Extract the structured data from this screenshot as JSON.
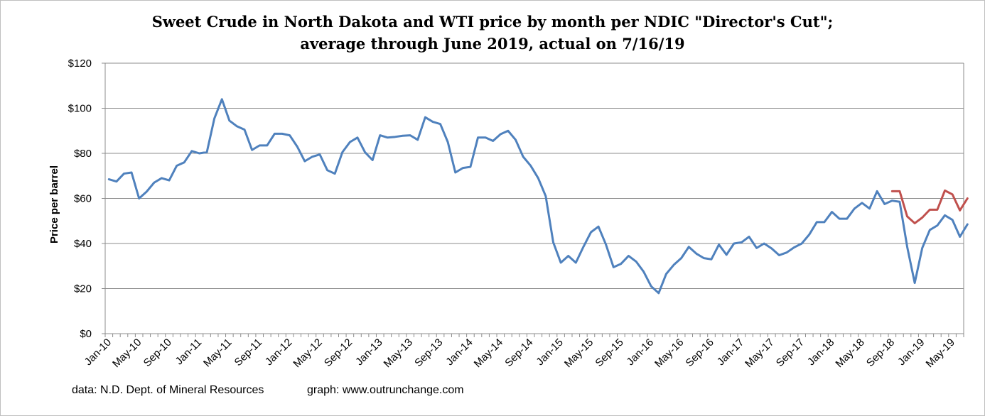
{
  "chart_data": {
    "type": "line",
    "title": "Sweet Crude in North Dakota and WTI price by month per NDIC \"Director's Cut\";",
    "subtitle": "average through June 2019, actual on 7/16/19",
    "ylabel": "Price per barrel",
    "xlabel": "",
    "ylim": [
      0,
      120
    ],
    "yticks": [
      "$0",
      "$20",
      "$40",
      "$60",
      "$80",
      "$100",
      "$120"
    ],
    "grid": true,
    "legend": "none",
    "x_labels": [
      "Jan-10",
      "May-10",
      "Sep-10",
      "Jan-11",
      "May-11",
      "Sep-11",
      "Jan-12",
      "May-12",
      "Sep-12",
      "Jan-13",
      "May-13",
      "Sep-13",
      "Jan-14",
      "May-14",
      "Sep-14",
      "Jan-15",
      "May-15",
      "Sep-15",
      "Jan-16",
      "May-16",
      "Sep-16",
      "Jan-17",
      "May-17",
      "Sep-17",
      "Jan-18",
      "May-18",
      "Sep-18",
      "Jan-19",
      "May-19"
    ],
    "x_start": "Jan-10",
    "x_end": "Jun-19",
    "series": [
      {
        "color": "#4f81bd",
        "start": "Jan-10",
        "values": [
          68.5,
          67.5,
          71,
          71.5,
          60,
          63,
          67,
          69,
          68,
          74.5,
          76,
          81,
          80,
          80.5,
          95.5,
          104,
          94.5,
          92,
          90.5,
          81.5,
          83.5,
          83.5,
          88.7,
          88.7,
          88,
          83,
          76.5,
          78.5,
          79.5,
          72.5,
          71,
          80.5,
          85,
          87,
          80.5,
          77,
          88,
          87,
          87.3,
          87.8,
          88,
          86,
          96,
          94,
          93,
          85,
          71.5,
          73.5,
          74,
          87,
          87,
          85.5,
          88.5,
          90,
          86,
          78.5,
          74.5,
          69,
          61,
          40.5,
          31.5,
          34.5,
          31.5,
          38.5,
          45,
          47.5,
          39.5,
          29.5,
          31,
          34.5,
          32,
          27.5,
          21,
          18,
          26.5,
          30.5,
          33.5,
          38.5,
          35.5,
          33.5,
          33,
          39.5,
          35,
          40,
          40.5,
          43,
          38,
          40,
          37.8,
          34.8,
          36,
          38.3,
          40,
          44,
          49.5,
          49.5,
          54,
          51,
          51,
          55.5,
          58,
          55.5,
          63.2,
          57.5,
          59,
          58.5,
          38.5,
          22.5,
          38,
          46,
          48,
          52.5,
          50.5,
          43,
          48.5
        ]
      },
      {
        "color": "#c0504d",
        "start": "Sep-18",
        "values": [
          63.2,
          63.2,
          52,
          49,
          51.5,
          55,
          55,
          63.5,
          61.8,
          54.7,
          60
        ]
      }
    ]
  },
  "footer": {
    "source": "data: N.D. Dept. of Mineral Resources",
    "credit": "graph:  www.outrunchange.com"
  }
}
